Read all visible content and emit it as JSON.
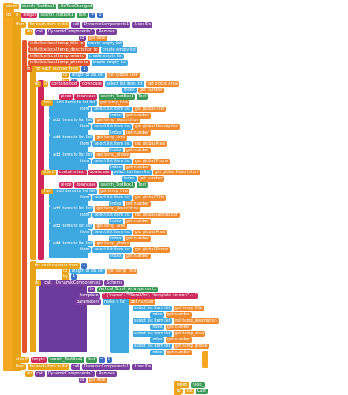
{
  "rows": [
    [
      "when",
      "search_TextBox1",
      ".OnTextChanged"
    ],
    [
      "do",
      "if",
      "length",
      "search_TextBox1",
      "Text",
      "=",
      "0"
    ],
    [
      "then",
      "for each item in list",
      "call",
      "DynamicComponents1",
      ".UsedIDs"
    ],
    [
      "do",
      "call",
      "DynamicComponents1",
      ".Remove"
    ],
    [
      "id",
      "get item"
    ],
    [
      "initialize local temp_title to",
      "create empty list"
    ],
    [
      "initialize local temp_description to",
      "create empty list"
    ],
    [
      "initialize local temp_area to",
      "create empty list"
    ],
    [
      "initialize local temp_phone to",
      "create empty list"
    ],
    [
      "in",
      "for each number from",
      "1"
    ],
    [
      "to",
      "length of list list",
      "get global Title"
    ],
    [
      "by",
      "1"
    ],
    [
      "do",
      "if",
      "contains text",
      "downcase",
      "select list item list",
      "get global Area"
    ],
    [
      "index",
      "get number"
    ],
    [
      "piece",
      "downcase",
      "search_TextBox1",
      "Text"
    ],
    [
      "then",
      "add items to list list",
      "get temp_title"
    ],
    [
      "item",
      "select list item list",
      "get global Title"
    ],
    [
      "index",
      "get number"
    ],
    [
      "add items to list list",
      "get temp_description"
    ],
    [
      "item",
      "select list item list",
      "get global Description"
    ],
    [
      "index",
      "get number"
    ],
    [
      "add items to list list",
      "get temp_area"
    ],
    [
      "item",
      "select list item list",
      "get global Area"
    ],
    [
      "index",
      "get number"
    ],
    [
      "add items to list list",
      "get temp_phone"
    ],
    [
      "item",
      "select list item list",
      "get global Phone"
    ],
    [
      "index",
      "get number"
    ],
    [
      "else if",
      "contains text",
      "downcase",
      "select list item list",
      "get global Description"
    ],
    [
      "index",
      "get number"
    ],
    [
      "piece",
      "downcase",
      "search_TextBox1",
      "Text"
    ],
    [
      "then",
      "add items to list list",
      "get temp_title"
    ],
    [
      "item",
      "select list item list",
      "get global Title"
    ],
    [
      "index",
      "get number"
    ],
    [
      "add items to list list",
      "get temp_description"
    ],
    [
      "item",
      "select list item list",
      "get global Description"
    ],
    [
      "index",
      "get number"
    ],
    [
      "add items to list list",
      "get temp_area"
    ],
    [
      "item",
      "select list item list",
      "get global Area"
    ],
    [
      "index",
      "get number"
    ],
    [
      "add items to list list",
      "get temp_phone"
    ],
    [
      "item",
      "select list item list",
      "get global Phone"
    ],
    [
      "index",
      "get number"
    ],
    [
      "for each number from",
      "1"
    ],
    [
      "to",
      "length of list list",
      "get temp_title"
    ],
    [
      "by",
      "1"
    ],
    [
      "do",
      "call",
      "DynamicComponents1",
      ".Schema"
    ],
    [
      "in",
      "Vertical_Scroll_Arrangement1"
    ],
    [
      "template",
      "\" {\"name\": \"VScrollArr\", \"template-version\" ... \""
    ],
    [
      "parameters",
      "make a list",
      "get number"
    ],
    [
      "select list item list",
      "get temp_title"
    ],
    [
      "index",
      "get number"
    ],
    [
      "select list item list",
      "get temp_description"
    ],
    [
      "index",
      "get number"
    ],
    [
      "select list item list",
      "get temp_area"
    ],
    [
      "index",
      "get number"
    ],
    [
      "select list item list",
      "get temp_phone"
    ],
    [
      "index",
      "get number"
    ],
    [
      "else if",
      "length",
      "search_TextBox1",
      "Text",
      "=",
      "0"
    ],
    [
      "then",
      "for each item in list",
      "call",
      "DynamicComponents1",
      ".UsedIDs"
    ],
    [
      "do",
      "call",
      "DynamicComponents1",
      ".Remove"
    ],
    [
      "id",
      "get item"
    ],
    [
      "when",
      "hosp_"
    ],
    [
      "do",
      "set",
      "Cust"
    ]
  ]
}
